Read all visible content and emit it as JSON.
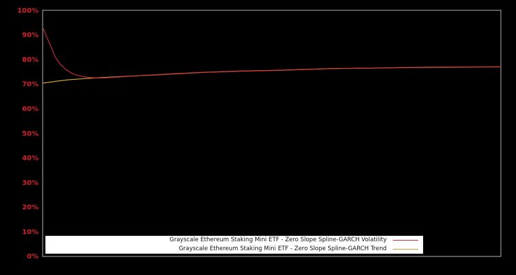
{
  "chart_data": {
    "type": "line",
    "title": "",
    "xlabel": "",
    "ylabel": "",
    "ylim": [
      0,
      100
    ],
    "x_axis_labels_visible": false,
    "grid": false,
    "background_color": "#000000",
    "plot_border_color": "#b3b3b3",
    "axis_label_color": "#d21f2c",
    "legend_position": "bottom-inside",
    "y_ticks": [
      "0%",
      "10%",
      "20%",
      "30%",
      "40%",
      "50%",
      "60%",
      "70%",
      "80%",
      "90%",
      "100%"
    ],
    "series": [
      {
        "name": "Grayscale Ethereum Staking Mini ETF - Zero Slope Spline-GARCH Trend",
        "color": "#c9a032",
        "points_format": "[x_fraction_of_plot_width, volatility_percent]",
        "points": [
          [
            0.0,
            70.4
          ],
          [
            0.03,
            71.2
          ],
          [
            0.057,
            71.8
          ],
          [
            0.095,
            72.3
          ],
          [
            0.132,
            72.7
          ],
          [
            0.17,
            73.05
          ],
          [
            0.207,
            73.4
          ],
          [
            0.245,
            73.75
          ],
          [
            0.282,
            74.1
          ],
          [
            0.32,
            74.5
          ],
          [
            0.357,
            74.8
          ],
          [
            0.395,
            75.05
          ],
          [
            0.432,
            75.3
          ],
          [
            0.47,
            75.45
          ],
          [
            0.507,
            75.6
          ],
          [
            0.567,
            75.95
          ],
          [
            0.627,
            76.3
          ],
          [
            0.69,
            76.45
          ],
          [
            0.747,
            76.6
          ],
          [
            0.81,
            76.75
          ],
          [
            0.868,
            76.85
          ],
          [
            0.935,
            76.95
          ],
          [
            1.0,
            77.0
          ]
        ]
      },
      {
        "name": "Grayscale Ethereum Staking Mini ETF - Zero Slope Spline-GARCH Volatility",
        "color": "#d62d3a",
        "points_format": "[x_fraction_of_plot_width, volatility_percent]",
        "points": [
          [
            0.0015,
            92.5
          ],
          [
            0.0045,
            91.2
          ],
          [
            0.009,
            89.0
          ],
          [
            0.0135,
            87.2
          ],
          [
            0.018,
            85.3
          ],
          [
            0.0225,
            83.3
          ],
          [
            0.027,
            81.2
          ],
          [
            0.033,
            79.5
          ],
          [
            0.039,
            78.0
          ],
          [
            0.0465,
            76.6
          ],
          [
            0.054,
            75.5
          ],
          [
            0.063,
            74.5
          ],
          [
            0.072,
            73.8
          ],
          [
            0.0825,
            73.3
          ],
          [
            0.093,
            72.9
          ],
          [
            0.105,
            72.65
          ],
          [
            0.1185,
            72.5
          ],
          [
            0.135,
            72.55
          ],
          [
            0.162,
            72.85
          ],
          [
            0.207,
            73.4
          ],
          [
            0.245,
            73.8
          ],
          [
            0.282,
            74.2
          ],
          [
            0.32,
            74.55
          ],
          [
            0.357,
            74.85
          ],
          [
            0.395,
            75.1
          ],
          [
            0.432,
            75.3
          ],
          [
            0.47,
            75.45
          ],
          [
            0.507,
            75.6
          ],
          [
            0.545,
            75.8
          ],
          [
            0.567,
            75.9
          ],
          [
            0.6,
            76.15
          ],
          [
            0.627,
            76.35
          ],
          [
            0.645,
            76.3
          ],
          [
            0.657,
            76.45
          ],
          [
            0.672,
            76.35
          ],
          [
            0.688,
            76.5
          ],
          [
            0.702,
            76.45
          ],
          [
            0.72,
            76.55
          ],
          [
            0.747,
            76.6
          ],
          [
            0.77,
            76.7
          ],
          [
            0.792,
            76.8
          ],
          [
            0.837,
            76.9
          ],
          [
            0.897,
            76.95
          ],
          [
            0.957,
            76.95
          ],
          [
            1.0,
            77.0
          ]
        ]
      }
    ]
  },
  "legend": {
    "items": [
      {
        "label": "Grayscale Ethereum Staking Mini ETF - Zero Slope Spline-GARCH Volatility",
        "series_index": 1
      },
      {
        "label": "Grayscale Ethereum Staking Mini ETF - Zero Slope Spline-GARCH Trend",
        "series_index": 0
      }
    ]
  }
}
